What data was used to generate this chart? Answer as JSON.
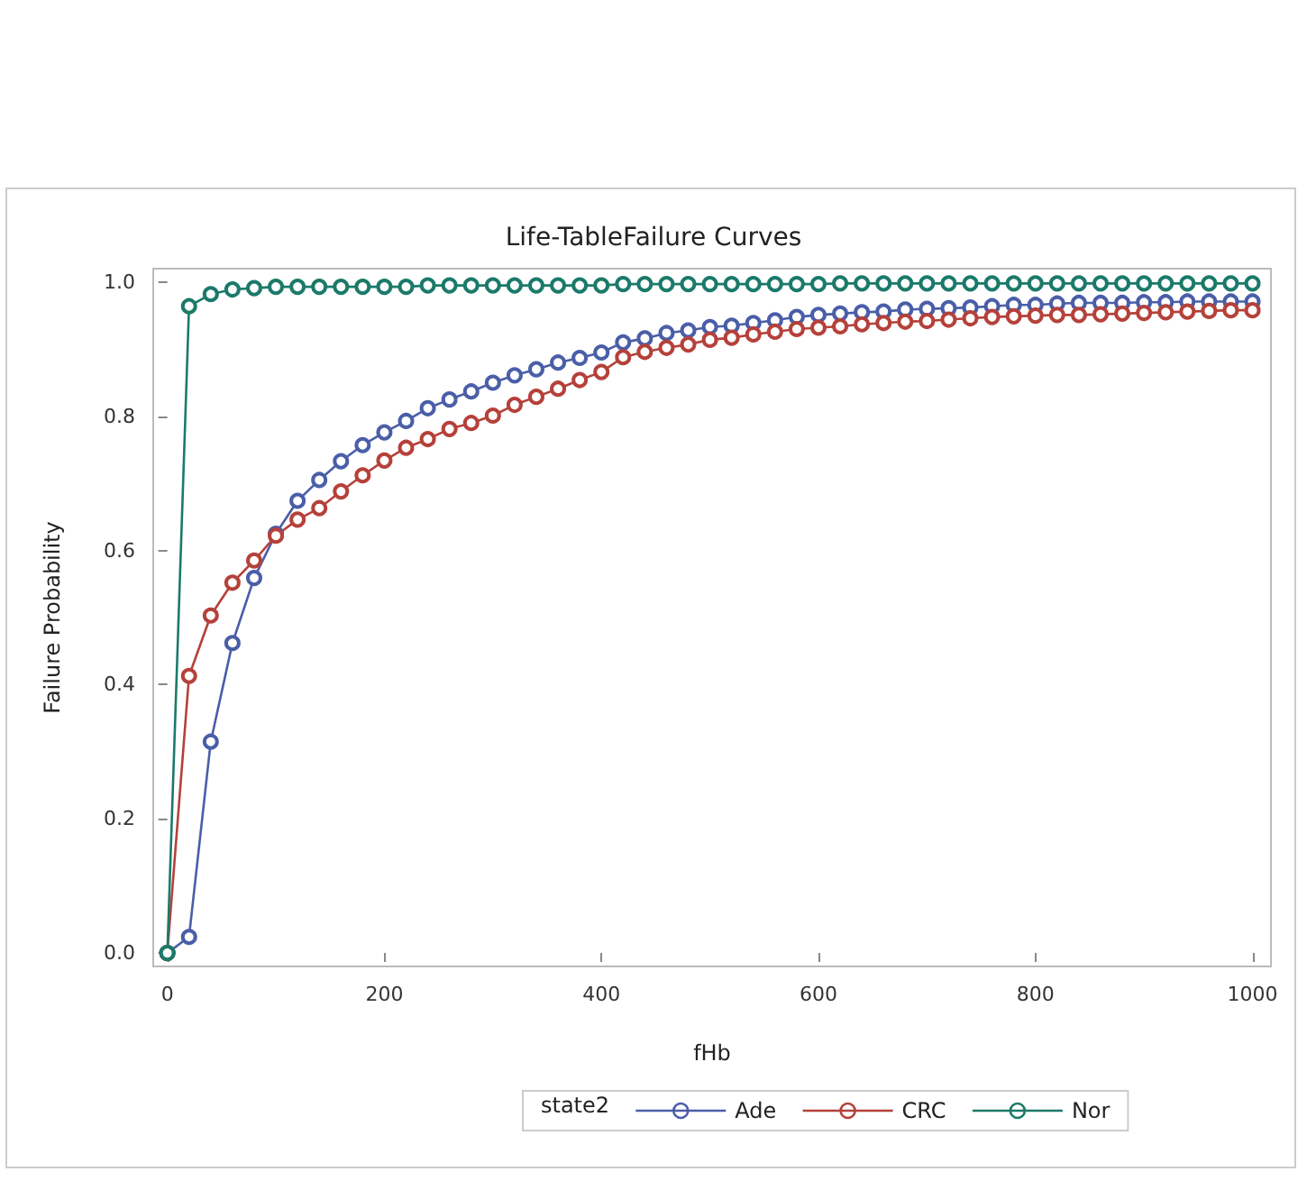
{
  "chart_data": {
    "type": "line",
    "title": "Life-TableFailure Curves",
    "xlabel": "fHb",
    "ylabel": "Failure Probability",
    "legend_title": "state2",
    "x": [
      0,
      20,
      40,
      60,
      80,
      100,
      120,
      140,
      160,
      180,
      200,
      220,
      240,
      260,
      280,
      300,
      320,
      340,
      360,
      380,
      400,
      420,
      440,
      460,
      480,
      500,
      520,
      540,
      560,
      580,
      600,
      620,
      640,
      660,
      680,
      700,
      720,
      740,
      760,
      780,
      800,
      820,
      840,
      860,
      880,
      900,
      920,
      940,
      960,
      980,
      1000
    ],
    "series": [
      {
        "name": "Ade",
        "color": "#4a5ea8",
        "values": [
          0,
          0.024,
          0.315,
          0.462,
          0.559,
          0.625,
          0.674,
          0.705,
          0.733,
          0.757,
          0.776,
          0.793,
          0.812,
          0.825,
          0.837,
          0.85,
          0.861,
          0.87,
          0.88,
          0.887,
          0.895,
          0.91,
          0.916,
          0.924,
          0.928,
          0.933,
          0.935,
          0.939,
          0.943,
          0.948,
          0.951,
          0.953,
          0.955,
          0.956,
          0.959,
          0.96,
          0.961,
          0.962,
          0.964,
          0.966,
          0.966,
          0.968,
          0.969,
          0.969,
          0.969,
          0.97,
          0.97,
          0.971,
          0.971,
          0.971,
          0.971
        ]
      },
      {
        "name": "CRC",
        "color": "#b5413a",
        "values": [
          0,
          0.413,
          0.503,
          0.552,
          0.585,
          0.622,
          0.646,
          0.663,
          0.688,
          0.712,
          0.734,
          0.753,
          0.766,
          0.781,
          0.79,
          0.801,
          0.817,
          0.829,
          0.841,
          0.854,
          0.866,
          0.888,
          0.896,
          0.902,
          0.907,
          0.914,
          0.917,
          0.922,
          0.926,
          0.93,
          0.932,
          0.934,
          0.937,
          0.939,
          0.941,
          0.942,
          0.944,
          0.946,
          0.948,
          0.949,
          0.95,
          0.951,
          0.951,
          0.952,
          0.953,
          0.954,
          0.955,
          0.956,
          0.957,
          0.958,
          0.958
        ]
      },
      {
        "name": "Nor",
        "color": "#1b7a6a",
        "values": [
          0,
          0.964,
          0.982,
          0.989,
          0.991,
          0.993,
          0.993,
          0.993,
          0.993,
          0.993,
          0.993,
          0.993,
          0.995,
          0.995,
          0.995,
          0.995,
          0.995,
          0.995,
          0.995,
          0.995,
          0.995,
          0.997,
          0.997,
          0.997,
          0.997,
          0.997,
          0.997,
          0.997,
          0.997,
          0.997,
          0.997,
          0.998,
          0.998,
          0.998,
          0.998,
          0.998,
          0.998,
          0.998,
          0.998,
          0.998,
          0.998,
          0.998,
          0.998,
          0.998,
          0.998,
          0.998,
          0.998,
          0.998,
          0.998,
          0.998,
          0.998
        ]
      }
    ],
    "xlim": [
      -13,
      1017
    ],
    "xticks": [
      0,
      200,
      400,
      600,
      800,
      1000
    ],
    "ylim": [
      -0.02,
      1.02
    ],
    "yticks": [
      {
        "value": 0,
        "label": "0.0"
      },
      {
        "value": 0.2,
        "label": "0.2"
      },
      {
        "value": 0.4,
        "label": "0.4"
      },
      {
        "value": 0.6,
        "label": "0.6"
      },
      {
        "value": 0.8,
        "label": "0.8"
      },
      {
        "value": 1,
        "label": "1.0"
      }
    ],
    "grid": false,
    "legend": "bottom",
    "marker": "circle",
    "line_style": "solid"
  }
}
